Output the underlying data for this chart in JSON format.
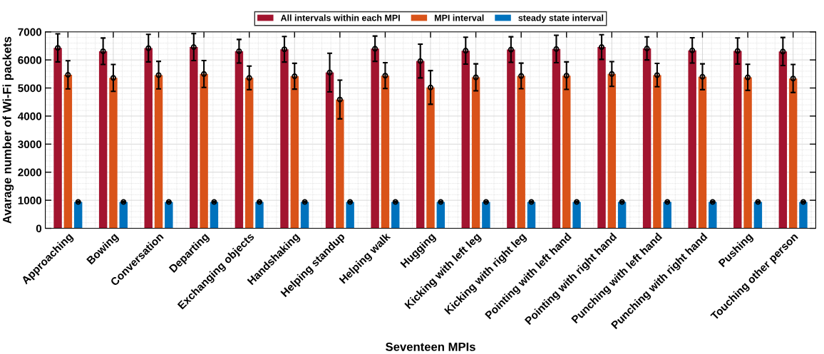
{
  "chart_data": {
    "type": "bar",
    "xlabel": "Seventeen MPIs",
    "ylabel": "Avarage number of Wi-Fi packets",
    "categories": [
      "Approaching",
      "Bowing",
      "Conversation",
      "Departing",
      "Exchanging objects",
      "Handshaking",
      "Helping standup",
      "Helping walk",
      "Hugging",
      "Kicking with left leg",
      "Kicking with right leg",
      "Pointing with left hand",
      "Pointing with right hand",
      "Punching with left hand",
      "Punching with right hand",
      "Pushing",
      "Touching other person"
    ],
    "series": [
      {
        "name": "All intervals within each MPI",
        "color": "#a2142f",
        "values": [
          6430,
          6310,
          6420,
          6460,
          6310,
          6380,
          5550,
          6400,
          5960,
          6330,
          6370,
          6390,
          6460,
          6410,
          6340,
          6320,
          6300
        ],
        "errors": [
          500,
          470,
          490,
          480,
          420,
          455,
          690,
          450,
          600,
          480,
          455,
          490,
          440,
          410,
          450,
          465,
          500
        ]
      },
      {
        "name": "MPI interval",
        "color": "#d95319",
        "values": [
          5470,
          5360,
          5460,
          5500,
          5360,
          5420,
          4590,
          5440,
          5020,
          5380,
          5430,
          5440,
          5500,
          5460,
          5400,
          5380,
          5340
        ],
        "errors": [
          500,
          480,
          490,
          480,
          420,
          460,
          690,
          460,
          600,
          480,
          455,
          490,
          440,
          415,
          460,
          465,
          500
        ]
      },
      {
        "name": "steady state interval",
        "color": "#0072bd",
        "values": [
          940,
          940,
          940,
          940,
          940,
          940,
          940,
          940,
          940,
          940,
          940,
          940,
          940,
          940,
          940,
          940,
          940
        ],
        "errors": [
          20,
          20,
          20,
          20,
          20,
          20,
          20,
          20,
          20,
          20,
          20,
          20,
          20,
          20,
          20,
          20,
          20
        ]
      },
      {
        "type": "scatter",
        "color": "#000000",
        "x": [
          "Approaching",
          "Bowing",
          "Conversation",
          "Departing",
          "Exchanging objects",
          "Handshaking",
          "Helping standup",
          "Helping walk",
          "Hugging",
          "Kicking with left leg",
          "Kicking with right leg",
          "Pointing with left hand",
          "Pointing with right hand",
          "Punching with left hand",
          "Punching with right hand",
          "Pushing",
          "Touching other person"
        ],
        "values": [
          6430,
          6310,
          6420,
          6460,
          6310,
          6380,
          5550,
          6400,
          5960,
          6330,
          6370,
          6390,
          6460,
          6410,
          6340,
          6320,
          6300
        ]
      },
      {
        "type": "scatter",
        "color": "#000000",
        "x": [
          "Approaching",
          "Bowing",
          "Conversation",
          "Departing",
          "Exchanging objects",
          "Handshaking",
          "Helping standup",
          "Helping walk",
          "Hugging",
          "Kicking with left leg",
          "Kicking with right leg",
          "Pointing with left hand",
          "Pointing with right hand",
          "Punching with left hand",
          "Punching with right hand",
          "Pushing",
          "Touching other person"
        ],
        "values": [
          5470,
          5360,
          5460,
          5500,
          5360,
          5420,
          4590,
          5440,
          5020,
          5380,
          5430,
          5440,
          5500,
          5460,
          5400,
          5380,
          5340
        ]
      },
      {
        "type": "scatter",
        "color": "#000000",
        "x": [
          "Approaching",
          "Bowing",
          "Conversation",
          "Departing",
          "Exchanging objects",
          "Handshaking",
          "Helping standup",
          "Helping walk",
          "Hugging",
          "Kicking with left leg",
          "Kicking with right leg",
          "Pointing with left hand",
          "Pointing with right hand",
          "Punching with left hand",
          "Punching with right hand",
          "Pushing",
          "Touching other person"
        ],
        "values": [
          940,
          940,
          940,
          940,
          940,
          940,
          940,
          940,
          940,
          940,
          940,
          940,
          940,
          940,
          940,
          940,
          940
        ]
      }
    ],
    "ylim": [
      0,
      7000
    ],
    "yticks": [
      0,
      1000,
      2000,
      3000,
      4000,
      5000,
      6000,
      7000
    ],
    "grid": true,
    "legend": "top",
    "marker": "circle"
  }
}
